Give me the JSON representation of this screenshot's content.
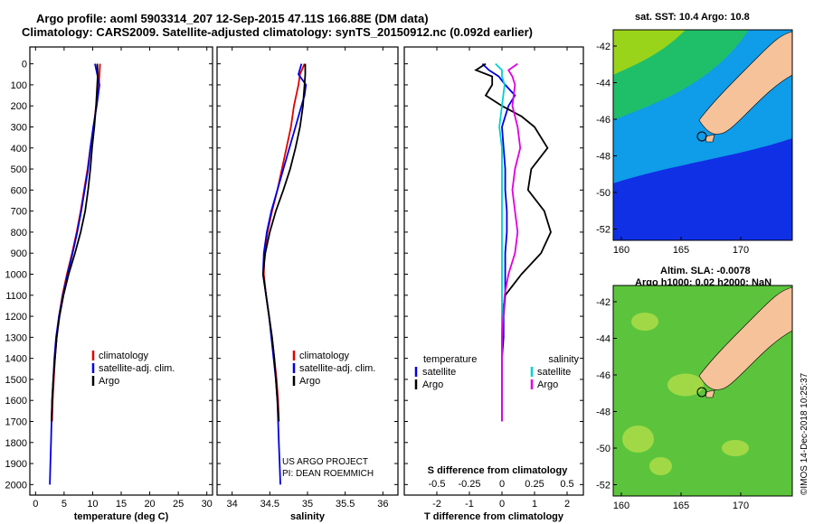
{
  "header": {
    "line1": "Argo profile: aoml 5903314_207 12-Sep-2015 47.11S 166.88E (DM data)",
    "line2": "Climatology: CARS2009. Satellite-adjusted climatology: synTS_20150912.nc (0.092d earlier)"
  },
  "credits": {
    "project": "US ARGO PROJECT",
    "pi": "PI: DEAN ROEMMICH",
    "imos": "©IMOS 14-Dec-2018 10:25:37"
  },
  "maps": {
    "sst_title": "sat. SST: 10.4 Argo: 10.8",
    "sla_title1": "Altim. SLA: -0.0078",
    "sla_title2": "Argo h1000: 0.02 h2000: NaN",
    "lat_ticks": [
      "-42",
      "-44",
      "-46",
      "-48",
      "-50",
      "-52"
    ],
    "lon_ticks": [
      "160",
      "165",
      "170"
    ],
    "colors": {
      "land": "#f5c29a",
      "sst_deep": "#1030e6",
      "sst_mid": "#0f9ce8",
      "sst_warm": "#1fbf6a",
      "sst_hot": "#9ad41a",
      "sla_base": "#5cc43c",
      "sla_light": "#b8e04a"
    }
  },
  "chart_data": [
    {
      "type": "line",
      "xlabel": "temperature (deg C)",
      "ylabel": "",
      "xlim": [
        -1,
        31
      ],
      "ylim": [
        2050,
        0
      ],
      "x_ticks": [
        0,
        5,
        10,
        15,
        20,
        25,
        30
      ],
      "y_ticks": [
        0,
        100,
        200,
        300,
        400,
        500,
        600,
        700,
        800,
        900,
        1000,
        1100,
        1200,
        1300,
        1400,
        1500,
        1600,
        1700,
        1800,
        1900,
        2000
      ],
      "legend": [
        "climatology",
        "satellite-adj. clim.",
        "Argo"
      ],
      "legend_position": "lower-right",
      "series": [
        {
          "name": "climatology",
          "color": "#e00000",
          "depth": [
            0,
            50,
            100,
            200,
            300,
            400,
            500,
            600,
            700,
            800,
            900,
            1000,
            1100,
            1200,
            1300,
            1400,
            1500,
            1600,
            1700
          ],
          "values": [
            11.3,
            11.2,
            11.1,
            10.6,
            10.2,
            9.6,
            9.1,
            8.5,
            7.9,
            7.2,
            6.4,
            5.5,
            4.7,
            4.1,
            3.7,
            3.4,
            3.2,
            3.0,
            2.9
          ]
        },
        {
          "name": "satellite-adj. clim.",
          "color": "#0000e0",
          "depth": [
            0,
            50,
            100,
            200,
            300,
            400,
            500,
            600,
            700,
            800,
            900,
            1000,
            1100,
            1200,
            1300,
            1400,
            1500,
            1600,
            1700,
            1800,
            1900,
            2000
          ],
          "values": [
            10.4,
            10.8,
            11.2,
            10.7,
            10.1,
            9.6,
            9.2,
            8.6,
            8.0,
            7.3,
            6.5,
            5.6,
            4.8,
            4.1,
            3.6,
            3.3,
            3.1,
            2.9,
            2.8,
            2.7,
            2.6,
            2.5
          ]
        },
        {
          "name": "Argo",
          "color": "#000000",
          "depth": [
            0,
            50,
            100,
            200,
            300,
            400,
            500,
            600,
            700,
            800,
            900,
            1000,
            1100,
            1200,
            1300,
            1400,
            1500,
            1600,
            1700
          ],
          "values": [
            10.8,
            10.9,
            10.8,
            10.6,
            10.3,
            9.9,
            9.6,
            9.2,
            8.7,
            7.9,
            6.9,
            5.8,
            4.9,
            4.2,
            3.7,
            3.4,
            3.1,
            2.9,
            2.8
          ]
        }
      ]
    },
    {
      "type": "line",
      "xlabel": "salinity",
      "ylabel": "",
      "xlim": [
        33.8,
        36.2
      ],
      "ylim": [
        2050,
        0
      ],
      "x_ticks": [
        34,
        34.5,
        35,
        35.5,
        36
      ],
      "x_tick_labels": [
        "34",
        "34.5",
        "35",
        "35.5",
        "36"
      ],
      "legend": [
        "climatology",
        "satellite-adj. clim.",
        "Argo"
      ],
      "legend_position": "lower-right",
      "series": [
        {
          "name": "climatology",
          "color": "#e00000",
          "depth": [
            0,
            50,
            100,
            150,
            200,
            300,
            400,
            500,
            600,
            700,
            800,
            900,
            1000,
            1100,
            1200,
            1300,
            1400,
            1500,
            1600,
            1700
          ],
          "values": [
            34.96,
            34.9,
            34.88,
            34.85,
            34.82,
            34.78,
            34.72,
            34.66,
            34.6,
            34.53,
            34.47,
            34.43,
            34.42,
            34.45,
            34.49,
            34.53,
            34.56,
            34.59,
            34.61,
            34.62
          ]
        },
        {
          "name": "satellite-adj. clim.",
          "color": "#0000e0",
          "depth": [
            0,
            50,
            100,
            150,
            200,
            300,
            400,
            500,
            600,
            700,
            800,
            900,
            1000,
            1100,
            1200,
            1300,
            1400,
            1500,
            1600,
            1700,
            1800,
            1900,
            2000
          ],
          "values": [
            34.92,
            34.88,
            34.98,
            34.96,
            34.92,
            34.84,
            34.76,
            34.68,
            34.6,
            34.52,
            34.46,
            34.42,
            34.41,
            34.45,
            34.49,
            34.52,
            34.55,
            34.58,
            34.6,
            34.61,
            34.62,
            34.63,
            34.64
          ]
        },
        {
          "name": "Argo",
          "color": "#000000",
          "depth": [
            0,
            50,
            100,
            150,
            200,
            300,
            400,
            500,
            600,
            700,
            800,
            900,
            1000,
            1100,
            1200,
            1300,
            1400,
            1500,
            1600,
            1700
          ],
          "values": [
            34.97,
            34.97,
            34.96,
            34.95,
            34.94,
            34.9,
            34.84,
            34.77,
            34.68,
            34.58,
            34.5,
            34.44,
            34.41,
            34.45,
            34.49,
            34.53,
            34.56,
            34.58,
            34.6,
            34.62
          ]
        }
      ]
    },
    {
      "type": "line",
      "xlabel": "T difference from climatology",
      "xlabel2": "S difference from climatology",
      "ylabel": "",
      "xlim": [
        -3,
        2.5
      ],
      "ylim": [
        2050,
        0
      ],
      "x_ticks": [
        -2,
        -1,
        0,
        1,
        2
      ],
      "x_tick_labels": [
        "-2",
        "-1",
        "0",
        "1",
        "2"
      ],
      "s_ticks": [
        -0.5,
        -0.25,
        0,
        0.25,
        0.5
      ],
      "s_tick_labels": [
        "-0.5",
        "-0.25",
        "0",
        "0.25",
        "0.5"
      ],
      "legend_temperature_title": "temperature",
      "legend_salinity_title": "salinity",
      "legend_temperature": [
        "satellite",
        "Argo"
      ],
      "legend_salinity": [
        "satellite",
        "Argo"
      ],
      "series": [
        {
          "name": "satellite",
          "color": "#0000e0",
          "depth": [
            0,
            30,
            60,
            100,
            150,
            200,
            300,
            400,
            500,
            600,
            700,
            800,
            900,
            1000,
            1100,
            1200,
            1300,
            1400,
            1500,
            1600,
            1700
          ],
          "values": [
            -0.6,
            -0.4,
            -0.1,
            0.1,
            0.4,
            0.2,
            0.0,
            0.05,
            0.1,
            0.1,
            0.15,
            0.15,
            0.1,
            0.1,
            0.1,
            0.05,
            0.05,
            0.0,
            0.0,
            0.0,
            0.0
          ]
        },
        {
          "name": "Argo",
          "color": "#000000",
          "depth": [
            0,
            30,
            60,
            100,
            150,
            200,
            250,
            300,
            400,
            500,
            600,
            700,
            800,
            900,
            1000,
            1100,
            1200,
            1300,
            1400,
            1500,
            1600,
            1700
          ],
          "values": [
            -0.5,
            -0.8,
            -0.3,
            -0.3,
            -0.5,
            0.0,
            0.6,
            1.0,
            1.4,
            0.9,
            0.8,
            1.3,
            1.5,
            1.2,
            0.6,
            0.1,
            0.0,
            0.0,
            0.0,
            0.0,
            0.0,
            0.0
          ]
        },
        {
          "name": "satellite",
          "color": "#00d0d0",
          "depth": [
            0,
            30,
            60,
            100,
            200,
            300,
            400,
            500,
            600,
            700,
            800,
            900,
            1000,
            1100,
            1200,
            1300,
            1400,
            1500,
            1600,
            1700
          ],
          "values": [
            -0.05,
            0.0,
            0.0,
            0.02,
            0.0,
            -0.02,
            0.0,
            0.0,
            0.0,
            0.0,
            0.0,
            0.0,
            0.0,
            0.0,
            0.0,
            0.0,
            0.0,
            0.0,
            0.0,
            0.0
          ]
        },
        {
          "name": "Argo",
          "color": "#e000e0",
          "depth": [
            0,
            30,
            60,
            100,
            200,
            300,
            400,
            500,
            600,
            700,
            800,
            900,
            1000,
            1100,
            1200,
            1300,
            1400,
            1500,
            1600,
            1700
          ],
          "values": [
            0.12,
            0.05,
            0.08,
            0.1,
            0.08,
            0.12,
            0.14,
            0.1,
            0.08,
            0.1,
            0.12,
            0.1,
            0.05,
            0.02,
            0.01,
            0.0,
            0.0,
            0.0,
            0.0,
            0.0
          ]
        }
      ]
    }
  ]
}
